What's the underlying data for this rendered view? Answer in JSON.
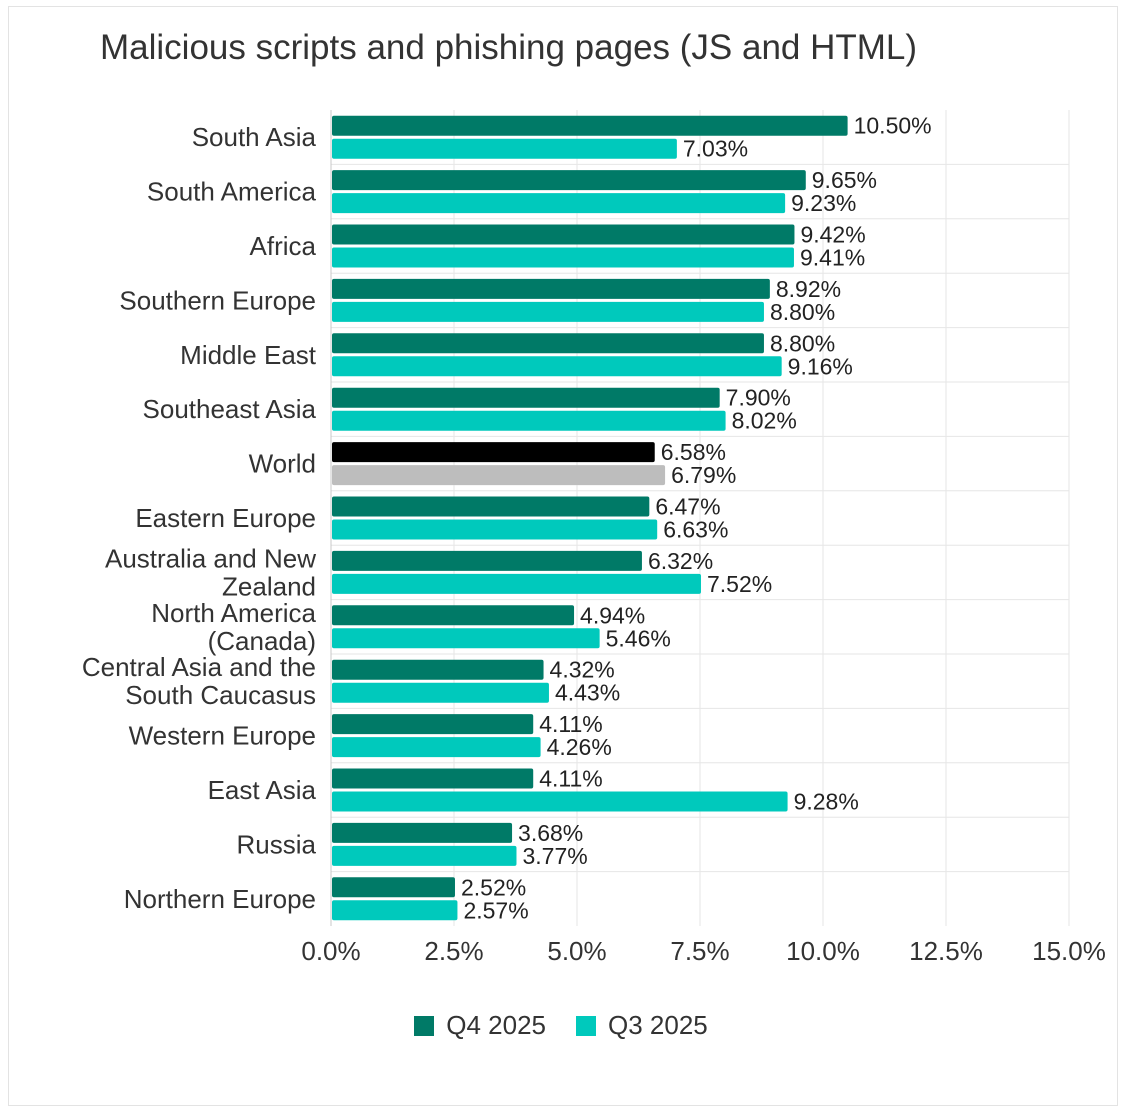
{
  "chart_data": {
    "type": "bar",
    "orientation": "horizontal",
    "title": "Malicious scripts and phishing pages (JS and HTML)",
    "xlabel": "",
    "ylabel": "",
    "xlim": [
      0,
      15
    ],
    "x_ticks": [
      "0.0%",
      "2.5%",
      "5.0%",
      "7.5%",
      "10.0%",
      "12.5%",
      "15.0%"
    ],
    "grid": true,
    "legend_position": "bottom",
    "categories": [
      [
        "South Asia"
      ],
      [
        "South America"
      ],
      [
        "Africa"
      ],
      [
        "Southern Europe"
      ],
      [
        "Middle East"
      ],
      [
        "Southeast Asia"
      ],
      [
        "World"
      ],
      [
        "Eastern Europe"
      ],
      [
        "Australia and New",
        "Zealand"
      ],
      [
        "North America",
        "(Canada)"
      ],
      [
        "Central Asia and the",
        "South Caucasus"
      ],
      [
        "Western Europe"
      ],
      [
        "East Asia"
      ],
      [
        "Russia"
      ],
      [
        "Northern Europe"
      ]
    ],
    "series": [
      {
        "name": "Q4 2025",
        "color": "#007a67",
        "highlight_color": "#000000",
        "values": [
          10.5,
          9.65,
          9.42,
          8.92,
          8.8,
          7.9,
          6.58,
          6.47,
          6.32,
          4.94,
          4.32,
          4.11,
          4.11,
          3.68,
          2.52
        ],
        "labels": [
          "10.50%",
          "9.65%",
          "9.42%",
          "8.92%",
          "8.80%",
          "7.90%",
          "6.58%",
          "6.47%",
          "6.32%",
          "4.94%",
          "4.32%",
          "4.11%",
          "4.11%",
          "3.68%",
          "2.52%"
        ]
      },
      {
        "name": "Q3 2025",
        "color": "#00c9bc",
        "highlight_color": "#bdbdbd",
        "values": [
          7.03,
          9.23,
          9.41,
          8.8,
          9.16,
          8.02,
          6.79,
          6.63,
          7.52,
          5.46,
          4.43,
          4.26,
          9.28,
          3.77,
          2.57
        ],
        "labels": [
          "7.03%",
          "9.23%",
          "9.41%",
          "8.80%",
          "9.16%",
          "8.02%",
          "6.79%",
          "6.63%",
          "7.52%",
          "5.46%",
          "4.43%",
          "4.26%",
          "9.28%",
          "3.77%",
          "2.57%"
        ]
      }
    ],
    "highlight_category": "World"
  },
  "colors": {
    "text": "#333333",
    "label_text": "#222222",
    "grid": "#e6e6e6",
    "axis": "#c8c8c8"
  }
}
